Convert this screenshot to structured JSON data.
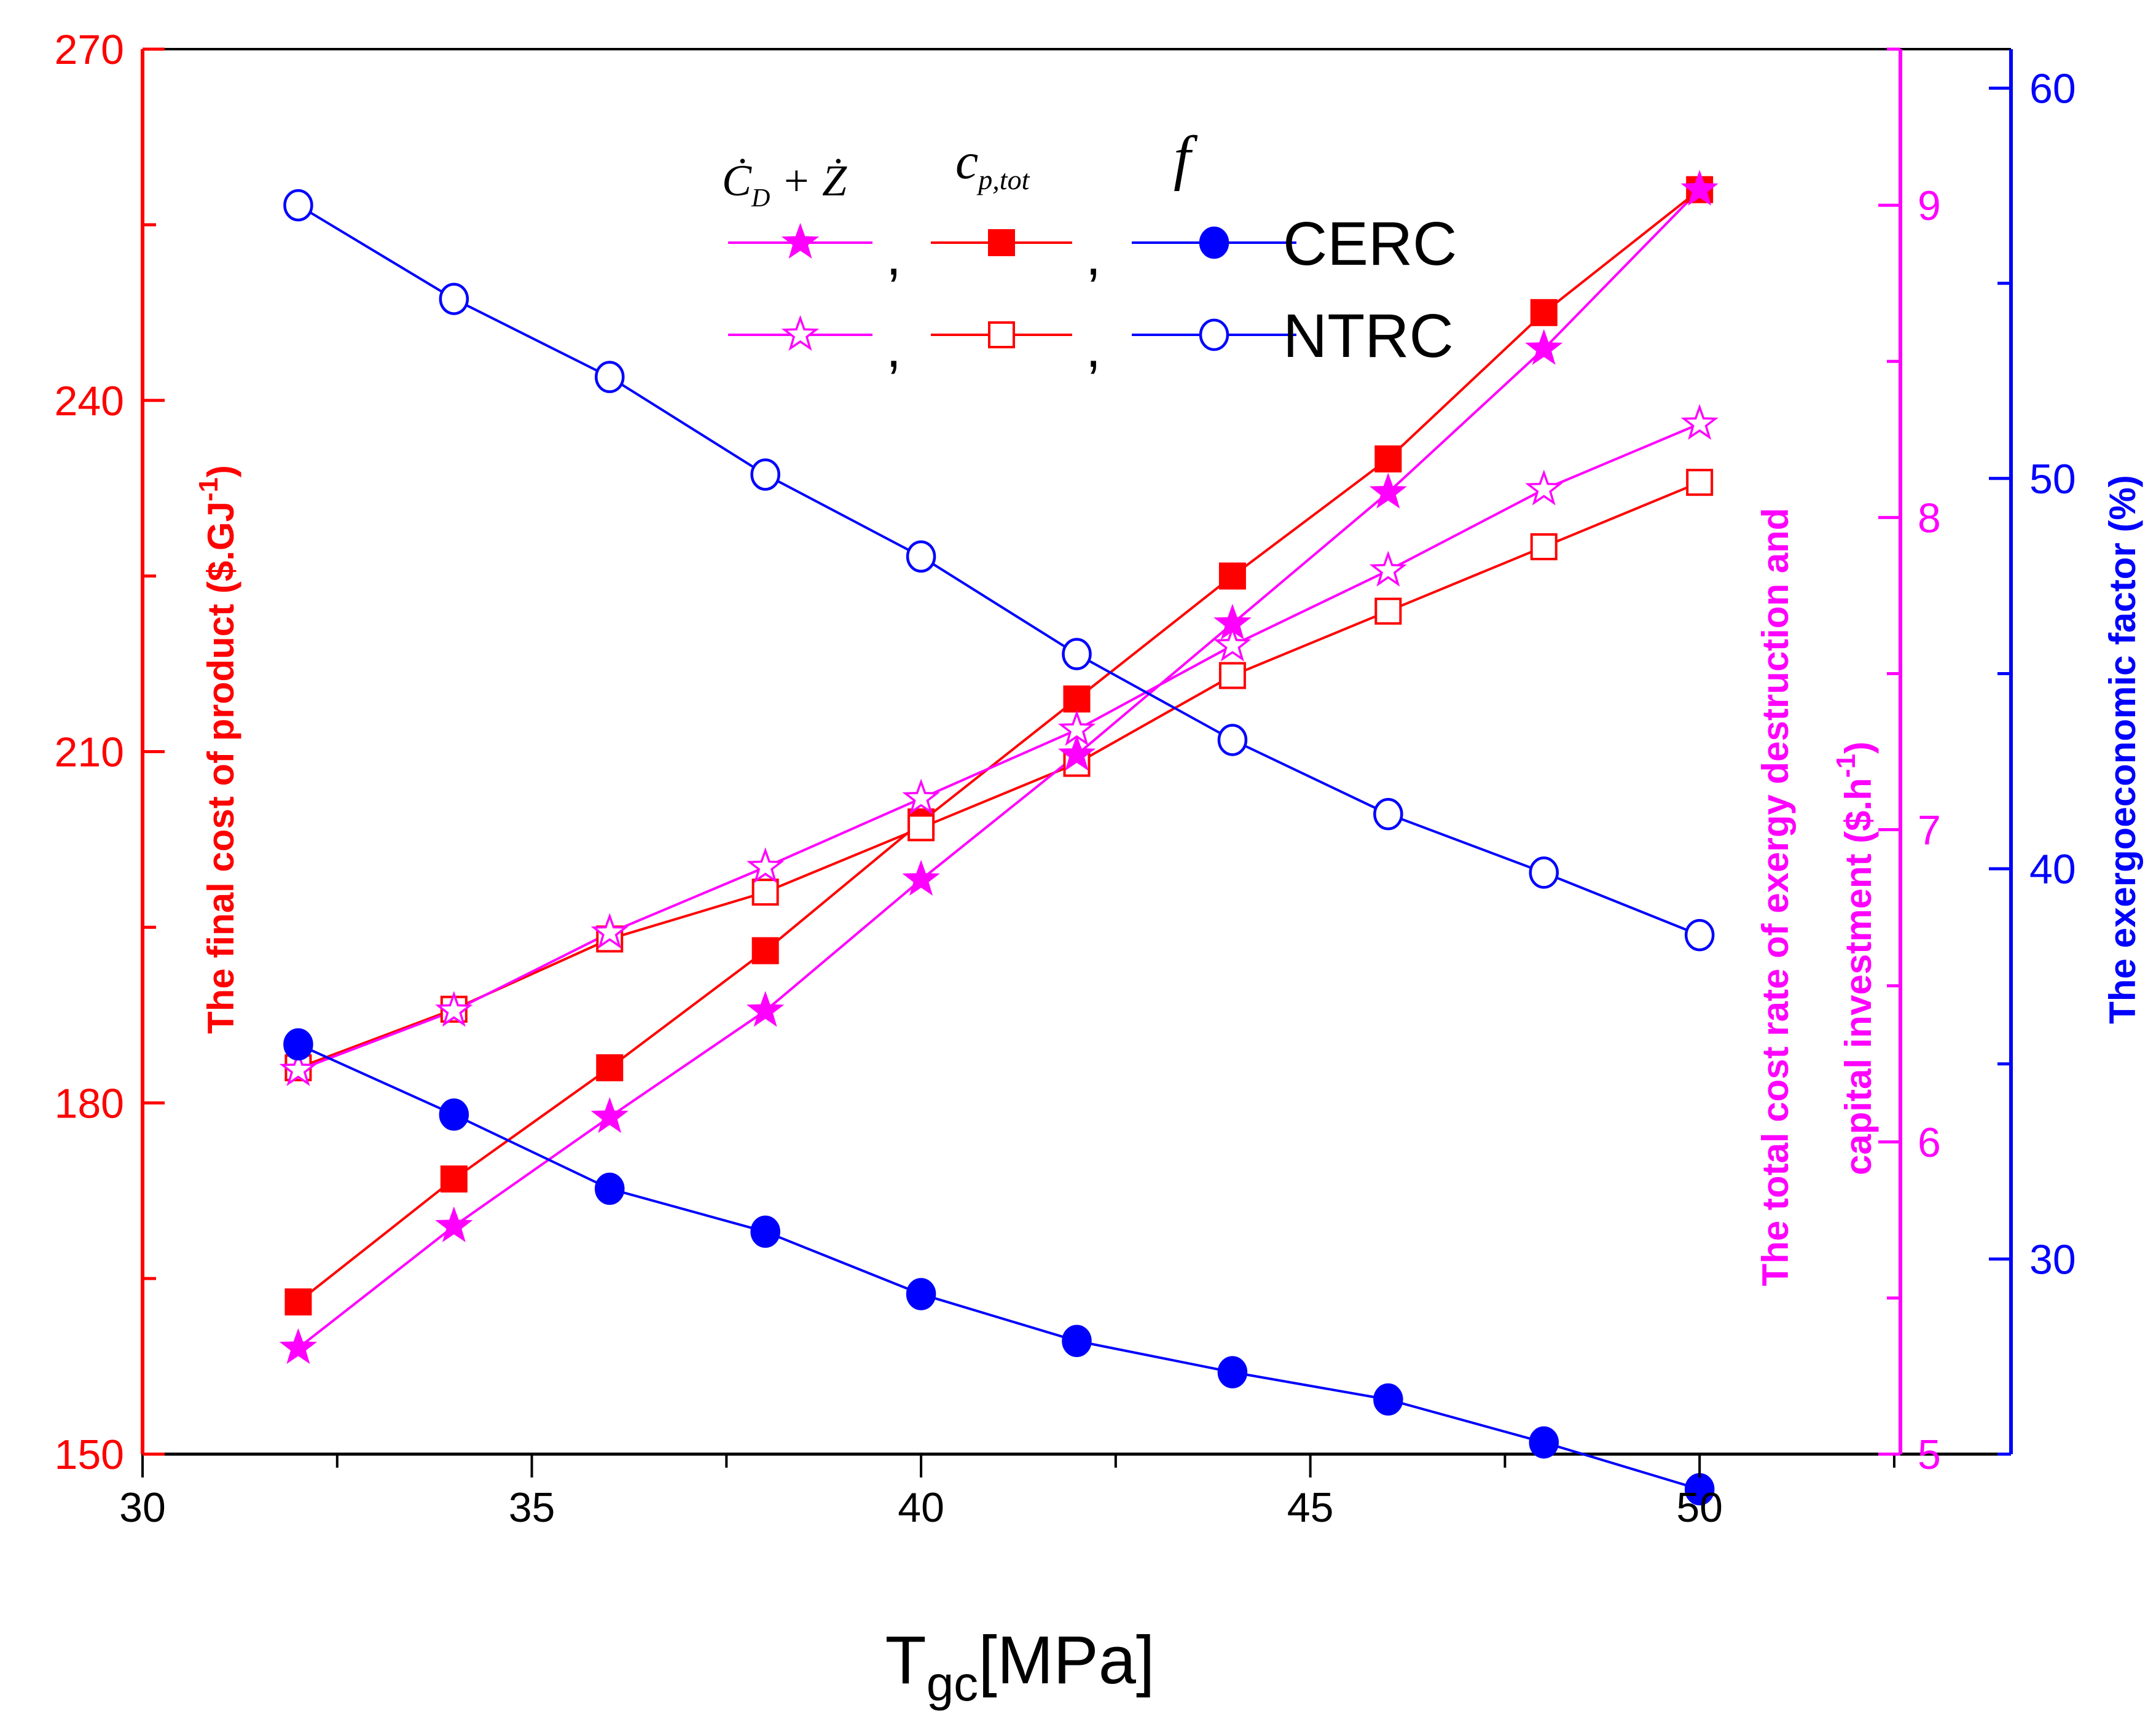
{
  "chart_data": {
    "type": "line",
    "xlabel": "T",
    "xlabel_sub": "gc",
    "xlabel_unit": "[MPa]",
    "x": [
      32,
      34,
      36,
      38,
      40,
      42,
      44,
      46,
      48,
      50
    ],
    "xlim": [
      30,
      54
    ],
    "x_ticks": [
      "30",
      "35",
      "40",
      "45",
      "50"
    ],
    "axes": {
      "left": {
        "label": "The final cost of product",
        "unit": "($.GJ",
        "unit_sup": "-1",
        "unit_close": ")",
        "ylim": [
          150,
          270
        ],
        "ticks": [
          "150",
          "180",
          "210",
          "240",
          "270"
        ],
        "color": "#ff0000"
      },
      "right1": {
        "label_line1": "The total cost rate of exergy destruction and",
        "label_line2": "capital investment",
        "unit": "($.h",
        "unit_sup": "-1",
        "unit_close": ")",
        "ylim": [
          5,
          9.5
        ],
        "ticks": [
          "5",
          "6",
          "7",
          "8",
          "9"
        ],
        "color": "#ff00ff"
      },
      "right2": {
        "label": "The exergoeconomic factor (%)",
        "ylim": [
          25,
          61
        ],
        "ticks": [
          "30",
          "40",
          "50",
          "60"
        ],
        "color": "#0000ff"
      }
    },
    "series": [
      {
        "name": "CERC c_p,tot",
        "axis": "left",
        "marker": "square-filled",
        "color": "#ff0000",
        "values": [
          163,
          173.5,
          183,
          193,
          204,
          214.5,
          225,
          235,
          247.5,
          258
        ]
      },
      {
        "name": "NTRC c_p,tot",
        "axis": "left",
        "marker": "square-open",
        "color": "#ff0000",
        "values": [
          183,
          188,
          194,
          198,
          203.5,
          209,
          216.5,
          222,
          227.5,
          233
        ]
      },
      {
        "name": "CERC C_D+Z",
        "axis": "right1",
        "marker": "star-filled",
        "color": "#ff00ff",
        "values": [
          5.34,
          5.73,
          6.08,
          6.42,
          6.84,
          7.24,
          7.66,
          8.08,
          8.54,
          9.05
        ]
      },
      {
        "name": "NTRC C_D+Z",
        "axis": "right1",
        "marker": "star-open",
        "color": "#ff00ff",
        "values": [
          6.23,
          6.42,
          6.67,
          6.88,
          7.1,
          7.32,
          7.59,
          7.83,
          8.09,
          8.3
        ]
      },
      {
        "name": "CERC f",
        "axis": "right2",
        "marker": "circle-filled",
        "color": "#0000ff",
        "values": [
          35.5,
          33.7,
          31.8,
          30.7,
          29.1,
          27.9,
          27.1,
          26.4,
          25.3,
          24.1
        ]
      },
      {
        "name": "NTRC f",
        "axis": "right2",
        "marker": "circle-open",
        "color": "#0000ff",
        "values": [
          57,
          54.6,
          52.6,
          50.1,
          48,
          45.5,
          43.3,
          41.4,
          39.9,
          38.3
        ]
      }
    ],
    "legend": {
      "placement": "top-center",
      "col_headers": [
        "C_D + Z",
        "c_p,tot",
        "f"
      ],
      "row_labels": [
        "CERC",
        "NTRC"
      ],
      "separator": ","
    }
  }
}
